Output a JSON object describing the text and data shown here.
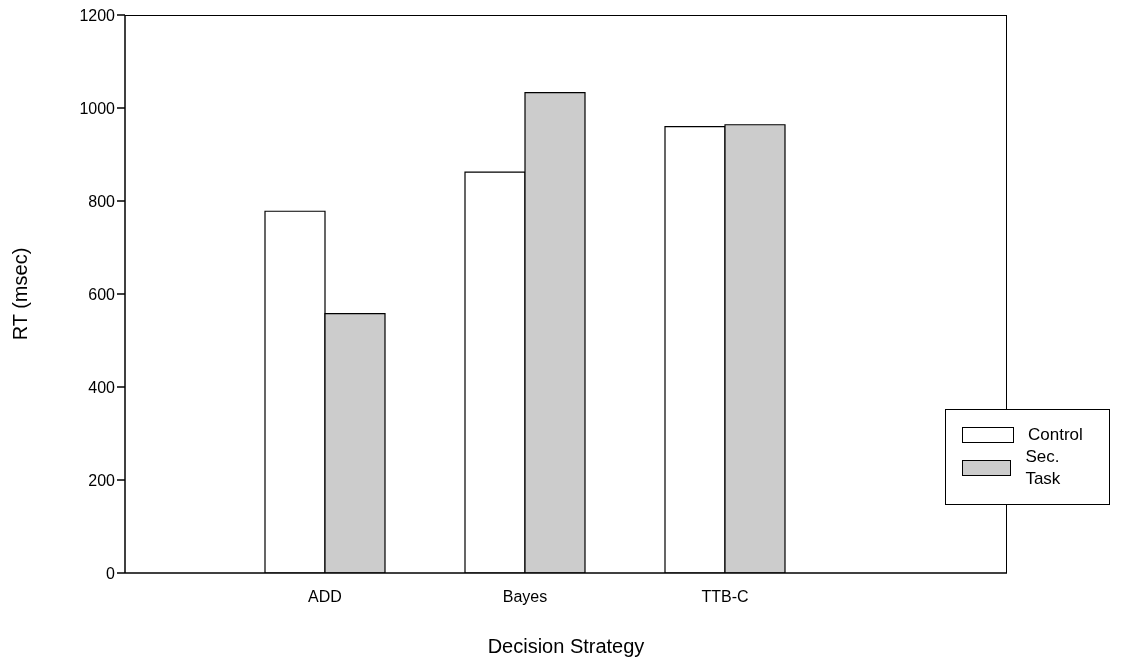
{
  "chart_data": {
    "type": "bar",
    "xlabel": "Decision Strategy",
    "ylabel": "RT (msec)",
    "categories": [
      "ADD",
      "Bayes",
      "TTB-C"
    ],
    "series": [
      {
        "name": "Control",
        "color": "#ffffff",
        "values": [
          778,
          862,
          960
        ]
      },
      {
        "name": "Sec. Task",
        "color": "#cccccc",
        "values": [
          558,
          1033,
          964
        ]
      }
    ],
    "ylim": [
      0,
      1200
    ],
    "yticks": [
      0,
      200,
      400,
      600,
      800,
      1000,
      1200
    ],
    "grid": false,
    "legend": "right"
  }
}
